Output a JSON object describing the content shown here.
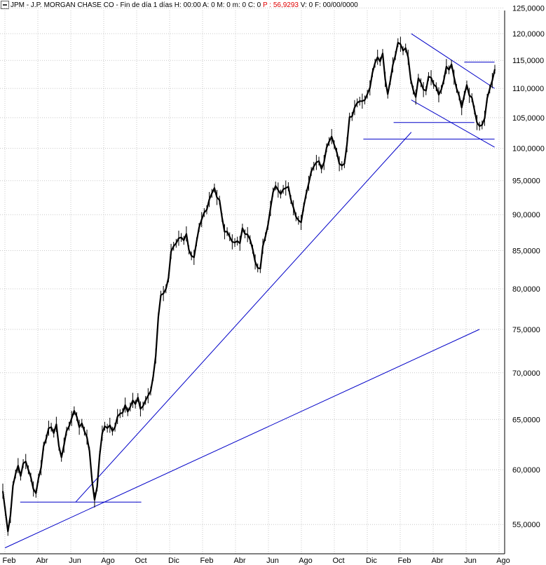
{
  "header": {
    "symbol": "JPM",
    "name": "J.P. MORGAN CHASE CO",
    "interval": "Fin de día 1 días",
    "h": "H: 00:00",
    "a": "A: 0",
    "m": "M: 0",
    "mm": "m: 0",
    "c": "C: 0",
    "p": "P : 56,9293",
    "v": "V: 0",
    "f": "F: 00/00/0000"
  },
  "chart_data": {
    "type": "line",
    "yscale": "log",
    "ylim": [
      52500,
      124500
    ],
    "yticks": [
      55000,
      60000,
      65000,
      70000,
      75000,
      80000,
      85000,
      90000,
      95000,
      100000,
      105000,
      110000,
      115000,
      120000,
      125000
    ],
    "ytick_labels": [
      "55,0000",
      "60,0000",
      "65,0000",
      "70,0000",
      "75,0000",
      "80,0000",
      "85,0000",
      "90,0000",
      "95,0000",
      "100,0000",
      "105,0000",
      "110,0000",
      "115,0000",
      "120,0000",
      "125,0000"
    ],
    "xlabels": [
      "Feb",
      "Abr",
      "Jun",
      "Ago",
      "Oct",
      "Dic",
      "Feb",
      "Abr",
      "Jun",
      "Ago",
      "Oct",
      "Dic",
      "Feb",
      "Abr",
      "Jun",
      "Ago"
    ],
    "series": [
      {
        "values": [
          58000,
          56200,
          54400,
          55800,
          58500,
          59600,
          60400,
          59400,
          60600,
          60800,
          60000,
          59300,
          58200,
          57800,
          59200,
          60200,
          62300,
          63000,
          64100,
          64200,
          63600,
          64500,
          62300,
          61200,
          62400,
          63800,
          64300,
          65100,
          65900,
          65300,
          64200,
          64600,
          63800,
          63200,
          61800,
          59000,
          57200,
          58400,
          61400,
          63600,
          64300,
          64100,
          64400,
          63800,
          64200,
          65300,
          65600,
          65700,
          66500,
          65800,
          66300,
          67000,
          66600,
          67300,
          66100,
          66400,
          67000,
          67500,
          68000,
          69600,
          71900,
          76500,
          79200,
          79400,
          80000,
          81400,
          84900,
          85600,
          86000,
          86700,
          86800,
          86400,
          87300,
          85100,
          84300,
          84100,
          86200,
          88200,
          89300,
          90300,
          90700,
          92200,
          93100,
          93900,
          92500,
          92100,
          89600,
          87600,
          87600,
          86900,
          86200,
          86100,
          86300,
          86000,
          88100,
          87300,
          87200,
          86500,
          85200,
          83500,
          82700,
          82600,
          85600,
          86900,
          88500,
          90900,
          93300,
          94200,
          93600,
          93000,
          93700,
          93900,
          94100,
          92200,
          91000,
          89700,
          89200,
          88900,
          91100,
          93000,
          94600,
          96400,
          97200,
          97800,
          98000,
          96800,
          97800,
          100100,
          101100,
          101900,
          100600,
          99400,
          97600,
          97300,
          97600,
          100600,
          105100,
          105200,
          106700,
          107500,
          107800,
          107800,
          108000,
          109000,
          110100,
          112800,
          114500,
          115600,
          114800,
          116300,
          111600,
          109000,
          111400,
          114200,
          115900,
          118300,
          118000,
          116800,
          117300,
          115600,
          111600,
          109700,
          108500,
          111800,
          111000,
          109800,
          109600,
          112100,
          111900,
          110700,
          110300,
          108900,
          109800,
          111500,
          113900,
          113300,
          114300,
          112000,
          110000,
          108700,
          106700,
          108800,
          110600,
          108800,
          108400,
          106300,
          104200,
          103600,
          103800,
          104900,
          108300,
          109900,
          111400,
          113400
        ]
      }
    ],
    "trendlines": [
      {
        "x": [
          0.04,
          0.28
        ],
        "y": [
          57000,
          57000
        ]
      },
      {
        "x": [
          0.01,
          0.95
        ],
        "y": [
          53000,
          75000
        ]
      },
      {
        "x": [
          0.15,
          0.815
        ],
        "y": [
          57000,
          102600
        ]
      },
      {
        "x": [
          0.815,
          0.98
        ],
        "y": [
          120000,
          110000
        ]
      },
      {
        "x": [
          0.815,
          0.98
        ],
        "y": [
          108000,
          100200
        ]
      },
      {
        "x": [
          0.78,
          0.94
        ],
        "y": [
          104200,
          104200
        ]
      },
      {
        "x": [
          0.72,
          0.98
        ],
        "y": [
          101500,
          101500
        ]
      },
      {
        "x": [
          0.92,
          0.98
        ],
        "y": [
          114700,
          114700
        ]
      }
    ],
    "grid": true,
    "colors": {
      "price": "#000000",
      "trend": "#0000c8",
      "grid": "#c8c8c8",
      "support": "#000000"
    }
  }
}
